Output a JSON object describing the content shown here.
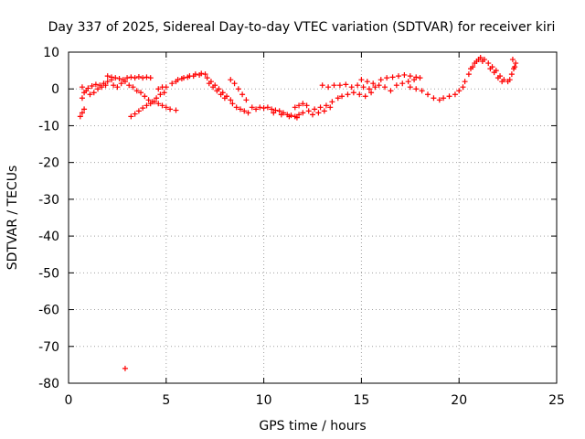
{
  "chart_data": {
    "type": "scatter",
    "title": "Day 337 of 2025, Sidereal Day-to-day VTEC variation (SDTVAR) for receiver kiri",
    "xlabel": "GPS time / hours",
    "ylabel": "SDTVAR / TECUs",
    "xlim": [
      0,
      25
    ],
    "ylim": [
      -80,
      10
    ],
    "xticks": [
      0,
      5,
      10,
      15,
      20,
      25
    ],
    "yticks": [
      10,
      0,
      -10,
      -20,
      -30,
      -40,
      -50,
      -60,
      -70,
      -80
    ],
    "xtick_labels": [
      "0",
      "5",
      "10",
      "15",
      "20",
      "25"
    ],
    "ytick_labels": [
      "10",
      "0",
      "-10",
      "-20",
      "-30",
      "-40",
      "-50",
      "-60",
      "-70",
      "-80"
    ],
    "grid": true,
    "marker": "+",
    "color": "#ff0000",
    "series": [
      {
        "name": "SDTVAR",
        "points": [
          [
            0.6,
            -7.5
          ],
          [
            0.7,
            -6.5
          ],
          [
            0.8,
            -5.5
          ],
          [
            0.7,
            -2.5
          ],
          [
            0.8,
            -1.0
          ],
          [
            0.7,
            0.5
          ],
          [
            0.9,
            -0.5
          ],
          [
            1.0,
            0.2
          ],
          [
            1.2,
            0.8
          ],
          [
            1.4,
            1.2
          ],
          [
            1.6,
            1.0
          ],
          [
            1.8,
            1.5
          ],
          [
            2.0,
            2.0
          ],
          [
            2.2,
            2.5
          ],
          [
            1.1,
            -1.5
          ],
          [
            1.3,
            -1.0
          ],
          [
            1.5,
            0.0
          ],
          [
            1.7,
            0.5
          ],
          [
            1.9,
            1.0
          ],
          [
            2.0,
            3.5
          ],
          [
            2.2,
            3.2
          ],
          [
            2.4,
            3.0
          ],
          [
            2.6,
            2.8
          ],
          [
            2.8,
            2.5
          ],
          [
            2.3,
            1.0
          ],
          [
            2.5,
            0.5
          ],
          [
            2.7,
            1.5
          ],
          [
            2.9,
            2.0
          ],
          [
            2.9,
            -76.0
          ],
          [
            3.0,
            3.0
          ],
          [
            3.2,
            3.2
          ],
          [
            3.4,
            3.0
          ],
          [
            3.6,
            3.3
          ],
          [
            3.8,
            3.0
          ],
          [
            4.0,
            3.2
          ],
          [
            4.2,
            3.0
          ],
          [
            3.1,
            1.0
          ],
          [
            3.3,
            0.5
          ],
          [
            3.5,
            -0.5
          ],
          [
            3.7,
            -1.0
          ],
          [
            3.9,
            -2.0
          ],
          [
            4.1,
            -3.0
          ],
          [
            4.3,
            -3.5
          ],
          [
            3.2,
            -7.5
          ],
          [
            3.4,
            -6.8
          ],
          [
            3.6,
            -6.0
          ],
          [
            3.8,
            -5.2
          ],
          [
            4.0,
            -4.5
          ],
          [
            4.2,
            -4.0
          ],
          [
            4.4,
            -3.5
          ],
          [
            4.5,
            -2.5
          ],
          [
            4.7,
            -1.5
          ],
          [
            4.9,
            -1.0
          ],
          [
            4.6,
            0.0
          ],
          [
            4.8,
            0.5
          ],
          [
            4.6,
            -4.0
          ],
          [
            4.8,
            -4.5
          ],
          [
            5.0,
            -5.0
          ],
          [
            5.2,
            -5.5
          ],
          [
            5.5,
            -5.8
          ],
          [
            5.0,
            0.5
          ],
          [
            5.3,
            1.5
          ],
          [
            5.6,
            2.5
          ],
          [
            5.9,
            3.0
          ],
          [
            6.2,
            3.5
          ],
          [
            6.5,
            4.0
          ],
          [
            6.8,
            4.2
          ],
          [
            7.0,
            4.0
          ],
          [
            5.5,
            2.0
          ],
          [
            5.8,
            2.8
          ],
          [
            6.1,
            3.2
          ],
          [
            6.4,
            3.5
          ],
          [
            6.7,
            3.8
          ],
          [
            7.1,
            3.0
          ],
          [
            7.3,
            2.0
          ],
          [
            7.5,
            1.0
          ],
          [
            7.7,
            0.0
          ],
          [
            7.9,
            -1.0
          ],
          [
            8.1,
            -2.0
          ],
          [
            8.3,
            -3.0
          ],
          [
            7.2,
            1.5
          ],
          [
            7.4,
            0.5
          ],
          [
            7.6,
            -0.5
          ],
          [
            7.8,
            -1.5
          ],
          [
            8.0,
            -2.5
          ],
          [
            8.3,
            2.5
          ],
          [
            8.5,
            1.5
          ],
          [
            8.7,
            0.0
          ],
          [
            8.9,
            -1.5
          ],
          [
            9.1,
            -3.0
          ],
          [
            8.4,
            -4.0
          ],
          [
            8.6,
            -5.0
          ],
          [
            8.8,
            -5.5
          ],
          [
            9.0,
            -6.0
          ],
          [
            9.2,
            -6.5
          ],
          [
            9.4,
            -5.0
          ],
          [
            9.6,
            -5.5
          ],
          [
            9.8,
            -5.0
          ],
          [
            10.0,
            -5.2
          ],
          [
            10.2,
            -5.0
          ],
          [
            10.4,
            -5.5
          ],
          [
            10.6,
            -5.8
          ],
          [
            10.8,
            -6.0
          ],
          [
            11.0,
            -6.5
          ],
          [
            11.2,
            -7.0
          ],
          [
            11.4,
            -7.2
          ],
          [
            11.6,
            -7.5
          ],
          [
            11.8,
            -7.0
          ],
          [
            12.0,
            -6.5
          ],
          [
            10.5,
            -6.5
          ],
          [
            10.9,
            -7.0
          ],
          [
            11.3,
            -7.5
          ],
          [
            11.7,
            -7.8
          ],
          [
            11.6,
            -5.0
          ],
          [
            11.8,
            -4.5
          ],
          [
            12.0,
            -4.0
          ],
          [
            12.2,
            -4.5
          ],
          [
            12.3,
            -6.0
          ],
          [
            12.6,
            -5.5
          ],
          [
            12.9,
            -5.0
          ],
          [
            13.2,
            -4.5
          ],
          [
            13.5,
            -3.5
          ],
          [
            13.8,
            -2.5
          ],
          [
            12.5,
            -7.0
          ],
          [
            12.8,
            -6.5
          ],
          [
            13.1,
            -6.0
          ],
          [
            13.4,
            -5.0
          ],
          [
            13.0,
            1.0
          ],
          [
            13.3,
            0.5
          ],
          [
            13.6,
            1.0
          ],
          [
            13.9,
            1.0
          ],
          [
            14.2,
            1.2
          ],
          [
            14.0,
            -2.0
          ],
          [
            14.3,
            -1.5
          ],
          [
            14.6,
            -1.0
          ],
          [
            14.9,
            -1.5
          ],
          [
            15.2,
            -2.0
          ],
          [
            15.5,
            -1.0
          ],
          [
            14.5,
            0.5
          ],
          [
            14.8,
            1.0
          ],
          [
            15.1,
            0.5
          ],
          [
            15.4,
            0.0
          ],
          [
            15.7,
            0.5
          ],
          [
            15.0,
            2.5
          ],
          [
            15.3,
            2.0
          ],
          [
            15.6,
            1.5
          ],
          [
            15.9,
            1.0
          ],
          [
            16.2,
            0.5
          ],
          [
            16.5,
            -0.5
          ],
          [
            16.0,
            2.5
          ],
          [
            16.3,
            3.0
          ],
          [
            16.6,
            3.2
          ],
          [
            16.9,
            3.5
          ],
          [
            17.2,
            3.8
          ],
          [
            17.5,
            3.5
          ],
          [
            17.8,
            3.2
          ],
          [
            16.8,
            1.0
          ],
          [
            17.1,
            1.5
          ],
          [
            17.4,
            2.0
          ],
          [
            17.7,
            2.5
          ],
          [
            18.0,
            3.0
          ],
          [
            17.5,
            0.5
          ],
          [
            17.8,
            0.0
          ],
          [
            18.1,
            -0.5
          ],
          [
            18.4,
            -1.5
          ],
          [
            18.7,
            -2.5
          ],
          [
            19.0,
            -3.0
          ],
          [
            19.2,
            -2.5
          ],
          [
            19.5,
            -2.0
          ],
          [
            19.8,
            -1.5
          ],
          [
            20.0,
            -0.5
          ],
          [
            20.2,
            0.5
          ],
          [
            20.3,
            2.0
          ],
          [
            20.5,
            4.0
          ],
          [
            20.7,
            6.0
          ],
          [
            20.9,
            7.5
          ],
          [
            21.1,
            8.5
          ],
          [
            21.3,
            8.0
          ],
          [
            20.6,
            5.5
          ],
          [
            20.8,
            7.0
          ],
          [
            21.0,
            8.0
          ],
          [
            21.2,
            7.5
          ],
          [
            21.5,
            7.0
          ],
          [
            21.7,
            6.0
          ],
          [
            21.9,
            5.0
          ],
          [
            22.1,
            3.5
          ],
          [
            22.3,
            2.5
          ],
          [
            22.5,
            2.0
          ],
          [
            21.6,
            5.5
          ],
          [
            21.8,
            4.5
          ],
          [
            22.0,
            3.0
          ],
          [
            22.2,
            2.0
          ],
          [
            22.6,
            2.5
          ],
          [
            22.7,
            4.0
          ],
          [
            22.8,
            5.5
          ],
          [
            22.9,
            7.0
          ],
          [
            22.85,
            6.0
          ],
          [
            22.75,
            8.0
          ]
        ]
      }
    ]
  }
}
